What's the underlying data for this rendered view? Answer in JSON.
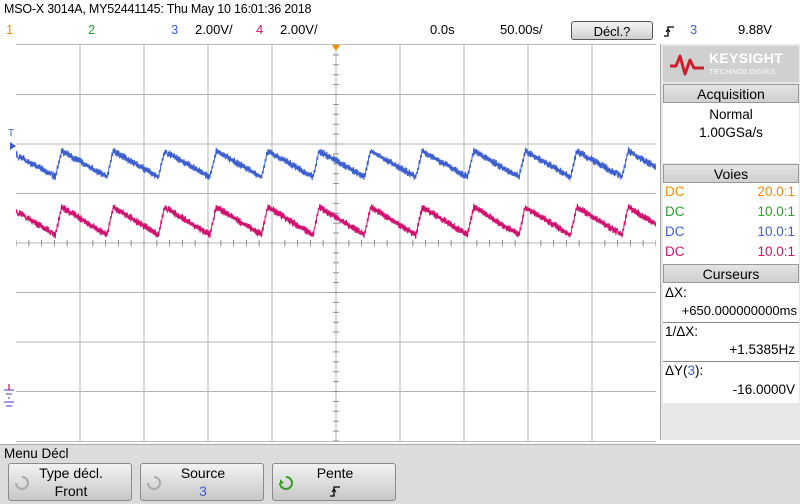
{
  "header": {
    "title": "MSO-X 3014A, MY52441145: Thu May 10 16:01:36 2018",
    "ch1_num": "1",
    "ch2_num": "2",
    "ch3_num": "3",
    "ch3_scale": "2.00V/",
    "ch4_num": "4",
    "ch4_scale": "2.00V/",
    "time_offset": "0.0s",
    "time_scale": "50.00s/",
    "trigger_button": "Décl.?",
    "trigger_slope_icon": "rising-edge-icon",
    "trigger_channel": "3",
    "trigger_level": "9.88V"
  },
  "colors": {
    "ch1": "#f08c00",
    "ch2": "#2ca02c",
    "ch3": "#3c5fd0",
    "ch4": "#d0106e"
  },
  "scope": {
    "trigger_marker": "T",
    "ch3_trace": "noisy sawtooth, channel 3",
    "ch4_trace": "noisy sawtooth, channel 4"
  },
  "side_panel": {
    "logo_text": "KEYSIGHT",
    "logo_sub": "TECHNOLOGIES",
    "acquisition_header": "Acquisition",
    "acq_mode": "Normal",
    "acq_rate": "1.00GSa/s",
    "channels_header": "Voies",
    "channels": [
      {
        "coupling": "DC",
        "ratio": "20.0:1"
      },
      {
        "coupling": "DC",
        "ratio": "10.0:1"
      },
      {
        "coupling": "DC",
        "ratio": "10.0:1"
      },
      {
        "coupling": "DC",
        "ratio": "10.0:1"
      }
    ],
    "cursors_header": "Curseurs",
    "dx_label": "ΔX:",
    "dx_value": "+650.000000000ms",
    "inv_dx_label": "1/ΔX:",
    "inv_dx_value": "+1.5385Hz",
    "dy_label_prefix": "ΔY(",
    "dy_channel": "3",
    "dy_label_suffix": "):",
    "dy_value": "-16.0000V"
  },
  "menu": {
    "title": "Menu Décl",
    "keys": [
      {
        "label": "Type décl.",
        "value": "Front"
      },
      {
        "label": "Source",
        "value": "3"
      },
      {
        "label": "Pente",
        "value": "rising-edge-icon"
      }
    ]
  }
}
